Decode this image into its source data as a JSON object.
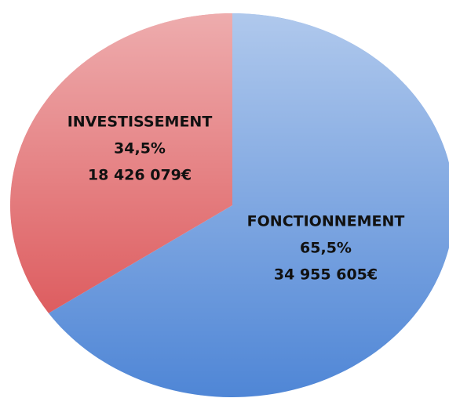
{
  "chart_data": {
    "type": "pie",
    "categories": [
      "FONCTIONNEMENT",
      "INVESTISSEMENT"
    ],
    "values": [
      65.5,
      34.5
    ],
    "value_labels": [
      "65,5%",
      "34,5%"
    ],
    "amounts": [
      34955605,
      18426079
    ],
    "amount_labels": [
      "34 955 605€",
      "18 426 079€"
    ],
    "colors": [
      "#4f86d6",
      "#d9474a"
    ]
  }
}
